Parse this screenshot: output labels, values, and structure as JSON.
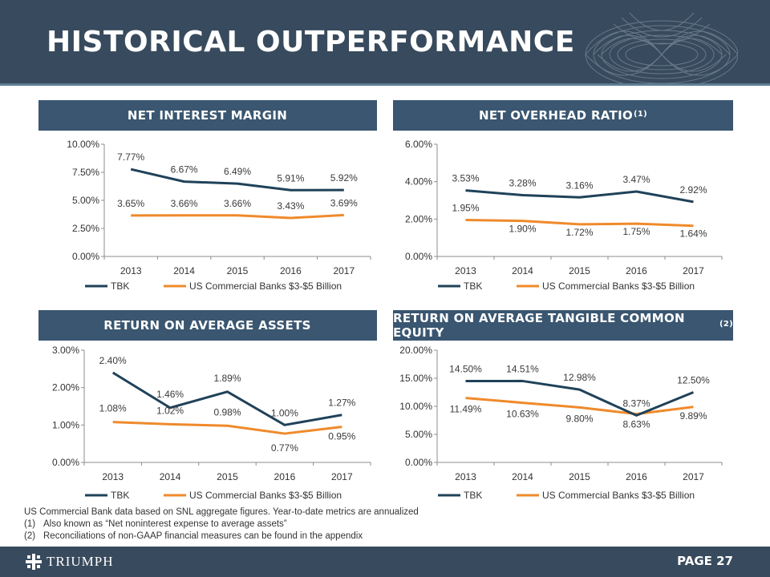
{
  "header": {
    "title": "HISTORICAL OUTPERFORMANCE"
  },
  "colors": {
    "header_bg": "#384a5d",
    "panel_bg": "#3a5670",
    "tbk": "#1f4259",
    "peer": "#ef8a2b"
  },
  "panels": [
    {
      "title": "NET INTEREST MARGIN",
      "sup": ""
    },
    {
      "title": "NET OVERHEAD RATIO",
      "sup": "(1)"
    },
    {
      "title": "RETURN ON AVERAGE ASSETS",
      "sup": ""
    },
    {
      "title": "RETURN ON AVERAGE TANGIBLE COMMON EQUITY",
      "sup": "(2)"
    }
  ],
  "chart_data": [
    {
      "type": "line",
      "title": "NET INTEREST MARGIN",
      "categories": [
        "2013",
        "2014",
        "2015",
        "2016",
        "2017"
      ],
      "ylim": [
        0,
        10
      ],
      "yticks": [
        "0.00%",
        "2.50%",
        "5.00%",
        "7.50%",
        "10.00%"
      ],
      "series": [
        {
          "name": "TBK",
          "values": [
            7.77,
            6.67,
            6.49,
            5.91,
            5.92
          ],
          "labels": [
            "7.77%",
            "6.67%",
            "6.49%",
            "5.91%",
            "5.92%"
          ]
        },
        {
          "name": "US Commercial Banks $3-$5 Billion",
          "values": [
            3.65,
            3.66,
            3.66,
            3.43,
            3.69
          ],
          "labels": [
            "3.65%",
            "3.66%",
            "3.66%",
            "3.43%",
            "3.69%"
          ]
        }
      ],
      "legend": "bottom"
    },
    {
      "type": "line",
      "title": "NET OVERHEAD RATIO",
      "categories": [
        "2013",
        "2014",
        "2015",
        "2016",
        "2017"
      ],
      "ylim": [
        0,
        6
      ],
      "yticks": [
        "0.00%",
        "2.00%",
        "4.00%",
        "6.00%"
      ],
      "series": [
        {
          "name": "TBK",
          "values": [
            3.53,
            3.28,
            3.16,
            3.47,
            2.92
          ],
          "labels": [
            "3.53%",
            "3.28%",
            "3.16%",
            "3.47%",
            "2.92%"
          ]
        },
        {
          "name": "US Commercial Banks $3-$5 Billion",
          "values": [
            1.95,
            1.9,
            1.72,
            1.75,
            1.64
          ],
          "labels": [
            "1.95%",
            "1.90%",
            "1.72%",
            "1.75%",
            "1.64%"
          ]
        }
      ],
      "legend": "bottom"
    },
    {
      "type": "line",
      "title": "RETURN ON AVERAGE ASSETS",
      "categories": [
        "2013",
        "2014",
        "2015",
        "2016",
        "2017"
      ],
      "ylim": [
        0,
        3
      ],
      "yticks": [
        "0.00%",
        "1.00%",
        "2.00%",
        "3.00%"
      ],
      "series": [
        {
          "name": "TBK",
          "values": [
            2.4,
            1.46,
            1.89,
            1.0,
            1.27
          ],
          "labels": [
            "2.40%",
            "1.46%",
            "1.89%",
            "1.00%",
            "1.27%"
          ]
        },
        {
          "name": "US Commercial Banks $3-$5 Billion",
          "values": [
            1.08,
            1.02,
            0.98,
            0.77,
            0.95
          ],
          "labels": [
            "1.08%",
            "1.02%",
            "0.98%",
            "0.77%",
            "0.95%"
          ]
        }
      ],
      "legend": "bottom"
    },
    {
      "type": "line",
      "title": "RETURN ON AVERAGE TANGIBLE COMMON EQUITY",
      "categories": [
        "2013",
        "2014",
        "2015",
        "2016",
        "2017"
      ],
      "ylim": [
        0,
        20
      ],
      "yticks": [
        "0.00%",
        "5.00%",
        "10.00%",
        "15.00%",
        "20.00%"
      ],
      "series": [
        {
          "name": "TBK",
          "values": [
            14.5,
            14.51,
            12.98,
            8.37,
            12.5
          ],
          "labels": [
            "14.50%",
            "14.51%",
            "12.98%",
            "8.37%",
            "12.50%"
          ]
        },
        {
          "name": "US Commercial Banks $3-$5 Billion",
          "values": [
            11.49,
            10.63,
            9.8,
            8.63,
            9.89
          ],
          "labels": [
            "11.49%",
            "10.63%",
            "9.80%",
            "8.63%",
            "9.89%"
          ]
        }
      ],
      "legend": "bottom"
    }
  ],
  "notes": {
    "intro": "US Commercial Bank data based on SNL aggregate figures. Year-to-date metrics are annualized",
    "items": [
      {
        "num": "(1)",
        "text": "Also known as “Net noninterest expense to average assets”"
      },
      {
        "num": "(2)",
        "text": "Reconciliations of non-GAAP financial measures can be found in the appendix"
      }
    ]
  },
  "footer": {
    "logo_text": "TRIUMPH",
    "page": "PAGE 27"
  }
}
